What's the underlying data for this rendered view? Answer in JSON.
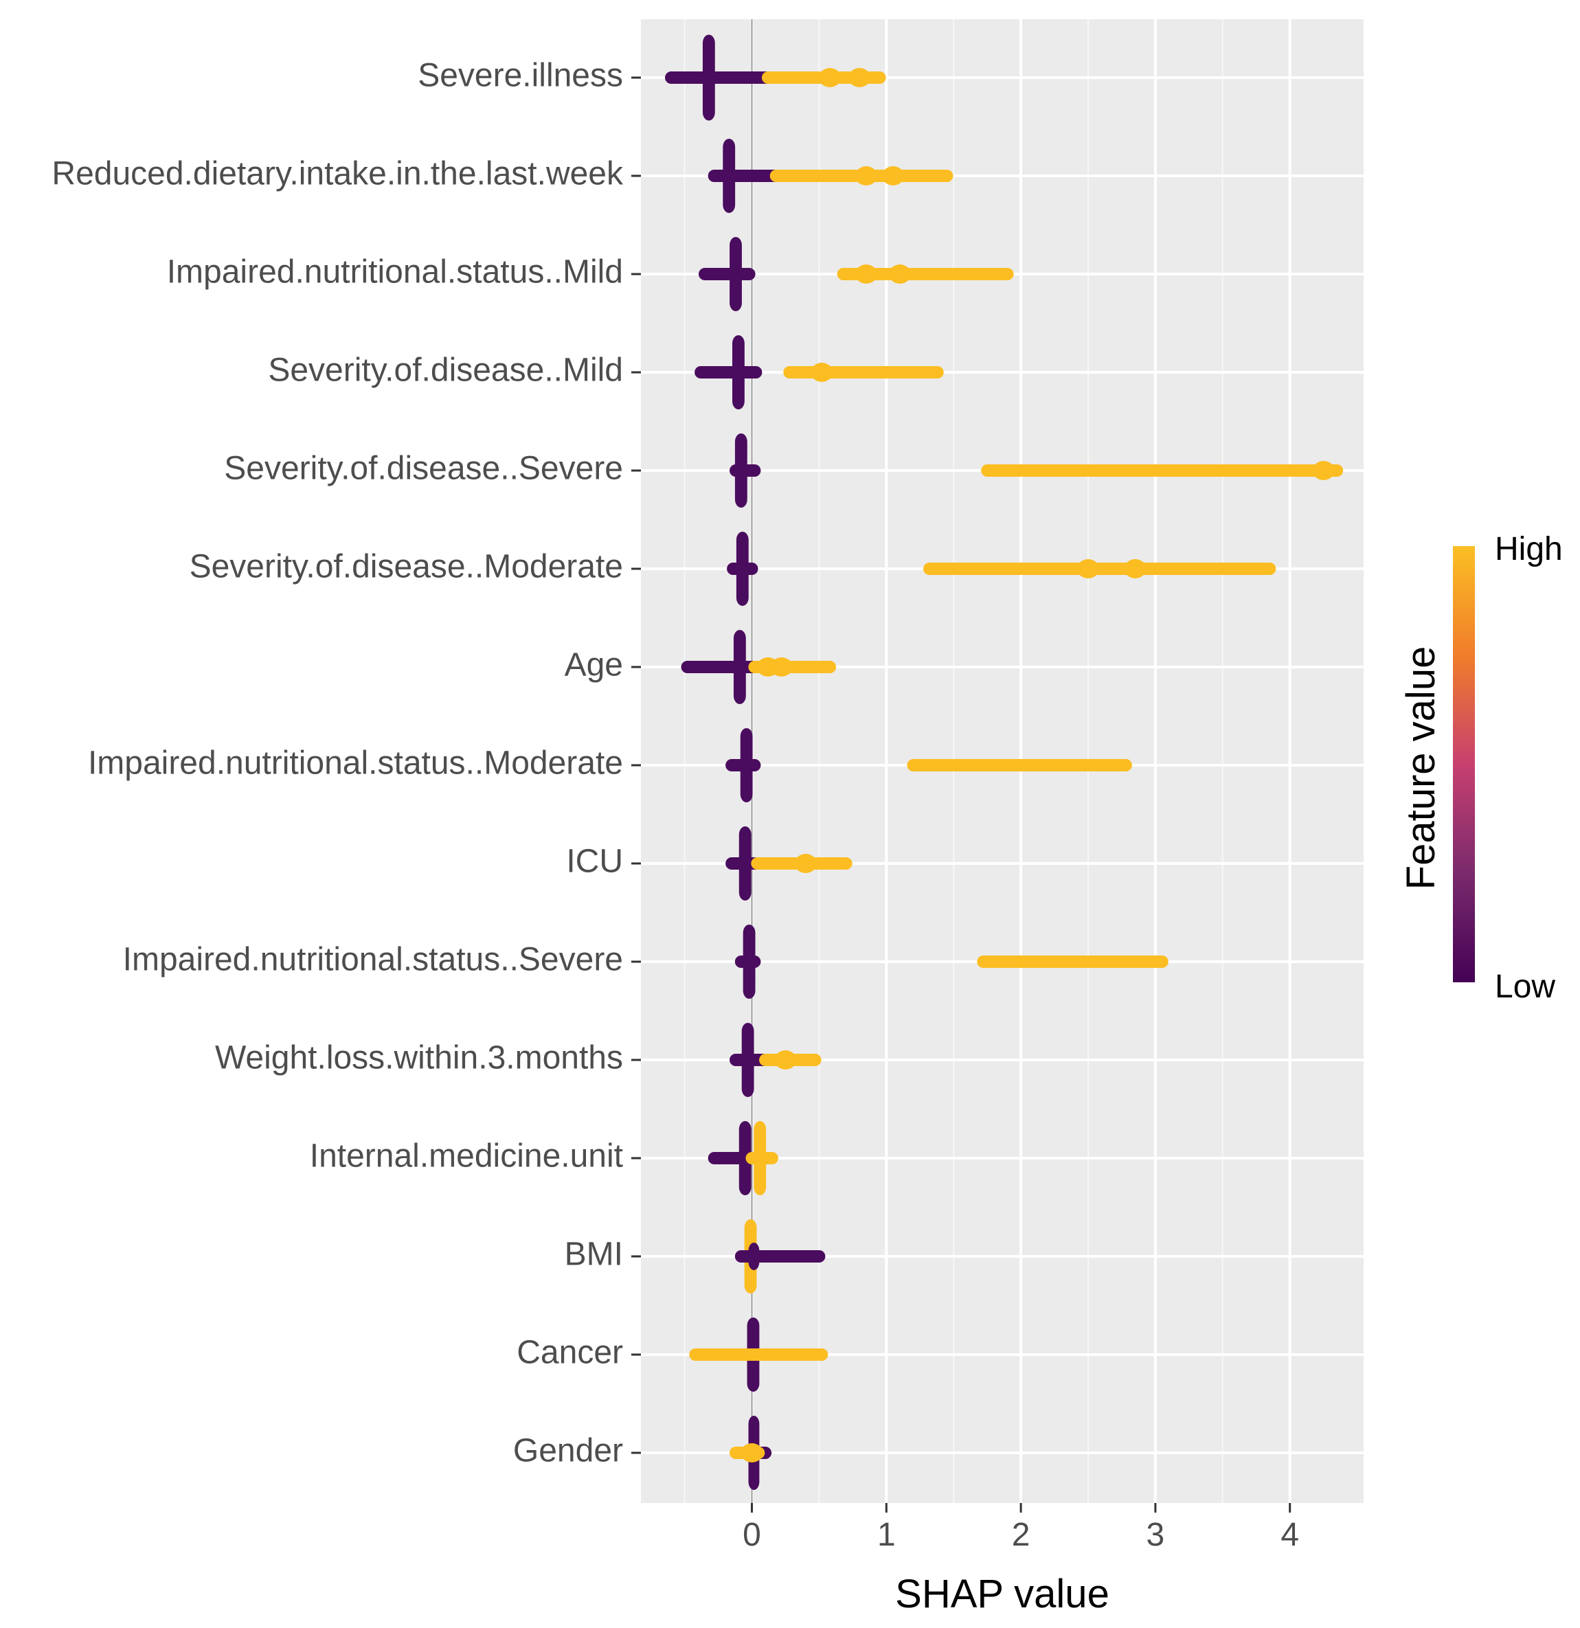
{
  "chart_data": {
    "type": "scatter",
    "subtype": "shap-beeswarm",
    "title": "",
    "xlabel": "SHAP value",
    "ylabel": "",
    "xlim": [
      -0.82,
      4.55
    ],
    "x_ticks": [
      0,
      1,
      2,
      3,
      4
    ],
    "zero_line": 0,
    "grid": true,
    "legend": {
      "title": "Feature value",
      "high_label": "High",
      "low_label": "Low",
      "placement": "right",
      "colors": [
        "#440154",
        "#7a2a6d",
        "#c7406f",
        "#f07d2a",
        "#fbbf24"
      ]
    },
    "colors": {
      "low": "#4a0c5e",
      "high": "#fbbd21"
    },
    "features": [
      {
        "name": "Severe.illness",
        "low": {
          "range": [
            -0.6,
            0.12
          ],
          "core": [
            -0.34,
            -0.3
          ]
        },
        "high": {
          "range": [
            0.12,
            0.95
          ],
          "clusters": [
            0.58,
            0.8
          ]
        }
      },
      {
        "name": "Reduced.dietary.intake.in.the.last.week",
        "low": {
          "range": [
            -0.28,
            0.18
          ],
          "core": [
            -0.19,
            -0.15
          ]
        },
        "high": {
          "range": [
            0.18,
            1.45
          ],
          "clusters": [
            0.85,
            1.05
          ]
        }
      },
      {
        "name": "Impaired.nutritional.status..Mild",
        "low": {
          "range": [
            -0.35,
            -0.02
          ],
          "core": [
            -0.14,
            -0.1
          ]
        },
        "high": {
          "range": [
            0.68,
            1.9
          ],
          "clusters": [
            0.85,
            1.1
          ]
        }
      },
      {
        "name": "Severity.of.disease..Mild",
        "low": {
          "range": [
            -0.38,
            0.03
          ],
          "core": [
            -0.12,
            -0.08
          ]
        },
        "high": {
          "range": [
            0.28,
            1.38
          ],
          "clusters": [
            0.52
          ]
        }
      },
      {
        "name": "Severity.of.disease..Severe",
        "low": {
          "range": [
            -0.12,
            0.02
          ],
          "core": [
            -0.1,
            -0.06
          ]
        },
        "high": {
          "range": [
            1.75,
            4.35
          ],
          "clusters": [
            4.25
          ]
        }
      },
      {
        "name": "Severity.of.disease..Moderate",
        "low": {
          "range": [
            -0.14,
            0.0
          ],
          "core": [
            -0.09,
            -0.05
          ]
        },
        "high": {
          "range": [
            1.32,
            3.85
          ],
          "clusters": [
            2.5,
            2.85
          ]
        }
      },
      {
        "name": "Age",
        "low": {
          "range": [
            -0.48,
            0.02
          ],
          "core": [
            -0.11,
            -0.07
          ]
        },
        "high": {
          "range": [
            0.02,
            0.58
          ],
          "clusters": [
            0.12,
            0.22
          ]
        }
      },
      {
        "name": "Impaired.nutritional.status..Moderate",
        "low": {
          "range": [
            -0.15,
            0.02
          ],
          "core": [
            -0.06,
            -0.02
          ]
        },
        "high": {
          "range": [
            1.2,
            2.78
          ],
          "clusters": []
        }
      },
      {
        "name": "ICU",
        "low": {
          "range": [
            -0.15,
            0.04
          ],
          "core": [
            -0.07,
            -0.03
          ]
        },
        "high": {
          "range": [
            0.04,
            0.7
          ],
          "clusters": [
            0.4
          ]
        }
      },
      {
        "name": "Impaired.nutritional.status..Severe",
        "low": {
          "range": [
            -0.08,
            0.02
          ],
          "core": [
            -0.04,
            0.0
          ]
        },
        "high": {
          "range": [
            1.72,
            3.05
          ],
          "clusters": []
        }
      },
      {
        "name": "Weight.loss.within.3.months",
        "low": {
          "range": [
            -0.12,
            0.12
          ],
          "core": [
            -0.05,
            -0.01
          ]
        },
        "high": {
          "range": [
            0.1,
            0.47
          ],
          "clusters": [
            0.25
          ]
        }
      },
      {
        "name": "Internal.medicine.unit",
        "low": {
          "range": [
            -0.28,
            0.0
          ],
          "core": [
            -0.07,
            -0.03
          ]
        },
        "high": {
          "range": [
            0.0,
            0.15
          ],
          "core": [
            0.04,
            0.08
          ]
        }
      },
      {
        "name": "BMI",
        "low": {
          "range": [
            -0.08,
            0.5
          ],
          "core": [
            0.0,
            0.03
          ]
        },
        "high": {
          "range": [
            -0.05,
            0.02
          ],
          "core": [
            -0.03,
            0.01
          ]
        }
      },
      {
        "name": "Cancer",
        "low": {
          "range": [
            -0.05,
            0.05
          ],
          "core": [
            -0.01,
            0.03
          ]
        },
        "high": {
          "range": [
            -0.42,
            0.52
          ],
          "clusters": []
        }
      },
      {
        "name": "Gender",
        "low": {
          "range": [
            -0.02,
            0.1
          ],
          "core": [
            0.0,
            0.03
          ]
        },
        "high": {
          "range": [
            -0.12,
            0.05
          ],
          "clusters": [
            0.0
          ]
        }
      }
    ]
  }
}
